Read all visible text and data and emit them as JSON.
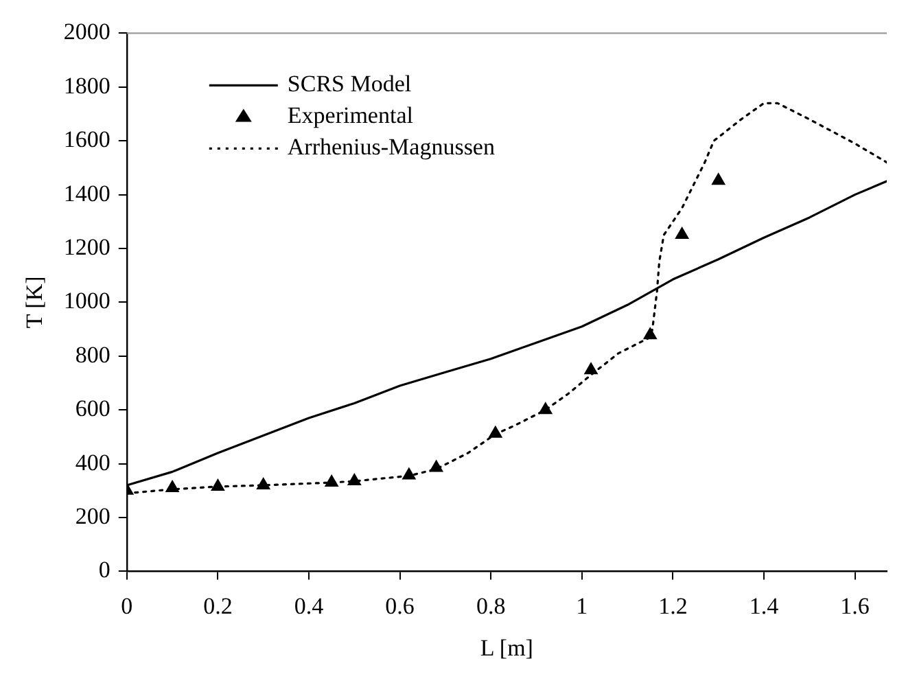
{
  "chart_data": {
    "type": "line",
    "xlabel": "L [m]",
    "ylabel": "T [K]",
    "xlim": [
      0,
      1.67
    ],
    "xticks": [
      0,
      0.2,
      0.4,
      0.6,
      0.8,
      1,
      1.2,
      1.4,
      1.6
    ],
    "ylim": [
      0,
      2000
    ],
    "yticks": [
      0,
      200,
      400,
      600,
      800,
      1000,
      1200,
      1400,
      1600,
      1800,
      2000
    ],
    "grid": false,
    "legend": "top left",
    "series": [
      {
        "name": "SCRS Model",
        "color": "#000000",
        "line_style": "solid",
        "marker": "none",
        "x": [
          0,
          0.1,
          0.2,
          0.3,
          0.4,
          0.5,
          0.6,
          0.7,
          0.8,
          0.9,
          1.0,
          1.1,
          1.2,
          1.3,
          1.4,
          1.5,
          1.6,
          1.67
        ],
        "values": [
          320,
          370,
          440,
          505,
          570,
          625,
          690,
          740,
          790,
          850,
          910,
          990,
          1085,
          1160,
          1240,
          1315,
          1400,
          1450
        ]
      },
      {
        "name": "Experimental",
        "type": "scatter",
        "color": "#000000",
        "marker": "triangle",
        "x": [
          0,
          0.1,
          0.2,
          0.3,
          0.45,
          0.5,
          0.62,
          0.68,
          0.81,
          0.92,
          1.02,
          1.15,
          1.22,
          1.3
        ],
        "values": [
          300,
          310,
          315,
          320,
          330,
          335,
          357,
          385,
          512,
          600,
          748,
          878,
          1251,
          1452
        ]
      },
      {
        "name": "Arrhenius-Magnussen",
        "color": "#000000",
        "line_style": "dotted",
        "marker": "none",
        "x": [
          0,
          0.1,
          0.2,
          0.3,
          0.45,
          0.5,
          0.62,
          0.68,
          0.75,
          0.81,
          0.85,
          0.92,
          0.97,
          1.02,
          1.08,
          1.15,
          1.155,
          1.165,
          1.17,
          1.18,
          1.22,
          1.27,
          1.29,
          1.35,
          1.4,
          1.43,
          1.5,
          1.6,
          1.67
        ],
        "values": [
          290,
          305,
          315,
          320,
          330,
          335,
          355,
          380,
          440,
          510,
          540,
          600,
          660,
          730,
          810,
          870,
          900,
          1040,
          1150,
          1250,
          1350,
          1520,
          1600,
          1680,
          1740,
          1740,
          1680,
          1590,
          1520
        ]
      }
    ]
  }
}
